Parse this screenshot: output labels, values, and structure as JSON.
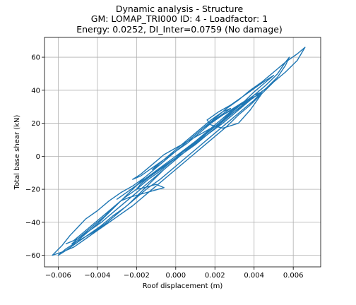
{
  "chart_data": {
    "type": "line",
    "title_lines": [
      "Dynamic analysis - Structure",
      "GM: LOMAP_TRI000 ID: 4 -  Loadfactor: 1",
      "Energy: 0.0252, DI_Inter=0.0759 (No damage)"
    ],
    "xlabel": "Roof displacement (m)",
    "ylabel": "Total base shear (kN)",
    "xlim": [
      -0.0067,
      0.0074
    ],
    "ylim": [
      -67,
      72
    ],
    "grid": true,
    "x_ticks": [
      {
        "value": -0.006,
        "label": "−0.006"
      },
      {
        "value": -0.004,
        "label": "−0.004"
      },
      {
        "value": -0.002,
        "label": "−0.002"
      },
      {
        "value": 0.0,
        "label": "0.000"
      },
      {
        "value": 0.002,
        "label": "0.002"
      },
      {
        "value": 0.004,
        "label": "0.004"
      },
      {
        "value": 0.006,
        "label": "0.006"
      }
    ],
    "y_ticks": [
      {
        "value": -60,
        "label": "−60"
      },
      {
        "value": -40,
        "label": "−40"
      },
      {
        "value": -20,
        "label": "−20"
      },
      {
        "value": 0,
        "label": "0"
      },
      {
        "value": 20,
        "label": "20"
      },
      {
        "value": 40,
        "label": "40"
      },
      {
        "value": 60,
        "label": "60"
      }
    ],
    "series": [
      {
        "color": "#1f77b4",
        "points": [
          [
            0.0,
            0
          ],
          [
            0.0008,
            6
          ],
          [
            0.0016,
            13
          ],
          [
            0.0024,
            20
          ],
          [
            0.003,
            26
          ],
          [
            0.0036,
            32
          ],
          [
            0.004,
            36
          ],
          [
            0.0036,
            33
          ],
          [
            0.003,
            29
          ],
          [
            0.0024,
            22
          ],
          [
            0.0018,
            16
          ],
          [
            0.0012,
            10
          ],
          [
            0.0006,
            5
          ],
          [
            0.0,
            -1
          ],
          [
            -0.0006,
            -6
          ],
          [
            -0.0012,
            -11
          ],
          [
            -0.0018,
            -16
          ],
          [
            -0.0024,
            -21
          ],
          [
            -0.003,
            -26
          ],
          [
            -0.0024,
            -21
          ],
          [
            -0.0016,
            -14
          ],
          [
            -0.0008,
            -7
          ],
          [
            0.0,
            0
          ],
          [
            0.001,
            9
          ],
          [
            0.002,
            18
          ],
          [
            0.003,
            27
          ],
          [
            0.0038,
            34
          ],
          [
            0.0046,
            41
          ],
          [
            0.0052,
            48
          ],
          [
            0.0056,
            55
          ],
          [
            0.0058,
            60
          ],
          [
            0.0056,
            57
          ],
          [
            0.0052,
            50
          ],
          [
            0.0046,
            43
          ],
          [
            0.004,
            37
          ],
          [
            0.0034,
            31
          ],
          [
            0.0028,
            25
          ],
          [
            0.0022,
            19
          ],
          [
            0.0016,
            13
          ],
          [
            0.001,
            7
          ],
          [
            0.0004,
            2
          ],
          [
            -0.0002,
            -3
          ],
          [
            -0.0008,
            -9
          ],
          [
            -0.0014,
            -14
          ],
          [
            -0.002,
            -20
          ],
          [
            -0.0026,
            -25
          ],
          [
            -0.0032,
            -31
          ],
          [
            -0.0038,
            -37
          ],
          [
            -0.0044,
            -43
          ],
          [
            -0.0048,
            -47
          ],
          [
            -0.0052,
            -51
          ],
          [
            -0.0056,
            -53
          ],
          [
            -0.005,
            -50
          ],
          [
            -0.0044,
            -45
          ],
          [
            -0.0038,
            -40
          ],
          [
            -0.0032,
            -34
          ],
          [
            -0.0026,
            -28
          ],
          [
            -0.002,
            -22
          ],
          [
            -0.0014,
            -16
          ],
          [
            -0.0008,
            -10
          ],
          [
            -0.0002,
            -4
          ],
          [
            0.0004,
            2
          ],
          [
            0.001,
            8
          ],
          [
            0.0016,
            14
          ],
          [
            0.0022,
            20
          ],
          [
            0.0028,
            26
          ],
          [
            0.0034,
            32
          ],
          [
            0.004,
            39
          ],
          [
            0.0046,
            45
          ],
          [
            0.005,
            49
          ],
          [
            0.0046,
            46
          ],
          [
            0.004,
            41
          ],
          [
            0.0034,
            36
          ],
          [
            0.0028,
            31
          ],
          [
            0.0022,
            27
          ],
          [
            0.0016,
            22
          ],
          [
            0.0018,
            19
          ],
          [
            0.0024,
            17
          ],
          [
            0.0032,
            20
          ],
          [
            0.0038,
            28
          ],
          [
            0.0044,
            38
          ],
          [
            0.0036,
            34
          ],
          [
            0.0028,
            28
          ],
          [
            0.002,
            22
          ],
          [
            0.0014,
            17
          ],
          [
            0.0008,
            11
          ],
          [
            0.0002,
            5
          ],
          [
            -0.0004,
            -1
          ],
          [
            -0.001,
            -7
          ],
          [
            -0.0016,
            -13
          ],
          [
            -0.0022,
            -18
          ],
          [
            -0.0028,
            -22
          ],
          [
            -0.0034,
            -27
          ],
          [
            -0.004,
            -33
          ],
          [
            -0.0046,
            -38
          ],
          [
            -0.005,
            -43
          ],
          [
            -0.0054,
            -48
          ],
          [
            -0.0058,
            -54
          ],
          [
            -0.0063,
            -60
          ],
          [
            -0.0058,
            -58
          ],
          [
            -0.0052,
            -55
          ],
          [
            -0.0046,
            -50
          ],
          [
            -0.004,
            -45
          ],
          [
            -0.0034,
            -40
          ],
          [
            -0.0028,
            -35
          ],
          [
            -0.0022,
            -30
          ],
          [
            -0.0016,
            -24
          ],
          [
            -0.001,
            -18
          ],
          [
            -0.0004,
            -12
          ],
          [
            0.0002,
            -6
          ],
          [
            0.0008,
            0
          ],
          [
            0.0014,
            6
          ],
          [
            0.002,
            12
          ],
          [
            0.0026,
            18
          ],
          [
            0.0032,
            25
          ],
          [
            0.0038,
            31
          ],
          [
            0.0044,
            38
          ],
          [
            0.005,
            45
          ],
          [
            0.0056,
            51
          ],
          [
            0.0062,
            58
          ],
          [
            0.0066,
            66
          ],
          [
            0.0062,
            62
          ],
          [
            0.0056,
            57
          ],
          [
            0.005,
            51
          ],
          [
            0.0044,
            45
          ],
          [
            0.0038,
            40
          ],
          [
            0.0032,
            34
          ],
          [
            0.0026,
            29
          ],
          [
            0.002,
            23
          ],
          [
            0.0014,
            17
          ],
          [
            0.0008,
            11
          ],
          [
            0.0002,
            5
          ],
          [
            -0.0004,
            -1
          ],
          [
            -0.001,
            -7
          ],
          [
            -0.0016,
            -13
          ],
          [
            -0.0022,
            -20
          ],
          [
            -0.0028,
            -27
          ],
          [
            -0.0034,
            -34
          ],
          [
            -0.004,
            -41
          ],
          [
            -0.0046,
            -47
          ],
          [
            -0.0052,
            -53
          ],
          [
            -0.0056,
            -56
          ],
          [
            -0.006,
            -60
          ],
          [
            -0.0056,
            -57
          ],
          [
            -0.005,
            -52
          ],
          [
            -0.0044,
            -47
          ],
          [
            -0.0038,
            -42
          ],
          [
            -0.0032,
            -36
          ],
          [
            -0.0026,
            -31
          ],
          [
            -0.002,
            -25
          ],
          [
            -0.0014,
            -19
          ],
          [
            -0.0008,
            -14
          ],
          [
            -0.0002,
            -8
          ],
          [
            0.0004,
            -2
          ],
          [
            0.001,
            4
          ],
          [
            0.0016,
            10
          ],
          [
            0.0022,
            16
          ],
          [
            0.0028,
            22
          ],
          [
            0.0034,
            28
          ],
          [
            0.004,
            34
          ],
          [
            0.0044,
            39
          ],
          [
            0.004,
            37
          ],
          [
            0.0034,
            32
          ],
          [
            0.0028,
            27
          ],
          [
            0.0022,
            21
          ],
          [
            0.0016,
            15
          ],
          [
            0.001,
            9
          ],
          [
            0.0004,
            3
          ],
          [
            -0.0002,
            -3
          ],
          [
            -0.0008,
            -8
          ],
          [
            -0.0014,
            -13
          ],
          [
            -0.0018,
            -17
          ],
          [
            -0.002,
            -20
          ],
          [
            -0.0016,
            -19
          ],
          [
            -0.001,
            -17
          ],
          [
            -0.0006,
            -19
          ],
          [
            -0.0012,
            -21
          ],
          [
            -0.0018,
            -23
          ],
          [
            -0.0024,
            -25
          ],
          [
            -0.0028,
            -27
          ],
          [
            -0.0032,
            -31
          ],
          [
            -0.0036,
            -36
          ],
          [
            -0.0042,
            -42
          ],
          [
            -0.0048,
            -48
          ],
          [
            -0.0053,
            -53
          ],
          [
            -0.0048,
            -50
          ],
          [
            -0.0042,
            -46
          ],
          [
            -0.0036,
            -41
          ],
          [
            -0.003,
            -35
          ],
          [
            -0.0024,
            -29
          ],
          [
            -0.0018,
            -22
          ],
          [
            -0.0012,
            -15
          ],
          [
            -0.0006,
            -8
          ],
          [
            0.0,
            -2
          ],
          [
            0.0006,
            4
          ],
          [
            0.0012,
            10
          ],
          [
            0.0018,
            16
          ],
          [
            0.0024,
            22
          ],
          [
            0.003,
            28
          ],
          [
            0.0034,
            32
          ],
          [
            0.003,
            29
          ],
          [
            0.0024,
            25
          ],
          [
            0.0018,
            20
          ],
          [
            0.0012,
            14
          ],
          [
            0.0006,
            8
          ],
          [
            0.0,
            3
          ],
          [
            -0.0006,
            -2
          ],
          [
            -0.0012,
            -8
          ],
          [
            -0.0008,
            -5
          ],
          [
            -0.0002,
            1
          ],
          [
            0.0004,
            7
          ],
          [
            0.001,
            13
          ],
          [
            0.0016,
            19
          ],
          [
            0.0022,
            24
          ],
          [
            0.0028,
            29
          ],
          [
            0.0024,
            27
          ],
          [
            0.0018,
            22
          ],
          [
            0.0012,
            16
          ],
          [
            0.0006,
            10
          ],
          [
            0.0,
            4
          ],
          [
            -0.0006,
            -2
          ],
          [
            -0.0012,
            -7
          ],
          [
            -0.0018,
            -12
          ],
          [
            -0.0022,
            -14
          ],
          [
            -0.0018,
            -11
          ],
          [
            -0.0012,
            -5
          ],
          [
            -0.0006,
            1
          ],
          [
            0.0,
            5
          ],
          [
            0.0006,
            9
          ],
          [
            0.0012,
            13
          ],
          [
            0.0018,
            17
          ],
          [
            0.0022,
            19
          ]
        ]
      }
    ]
  }
}
